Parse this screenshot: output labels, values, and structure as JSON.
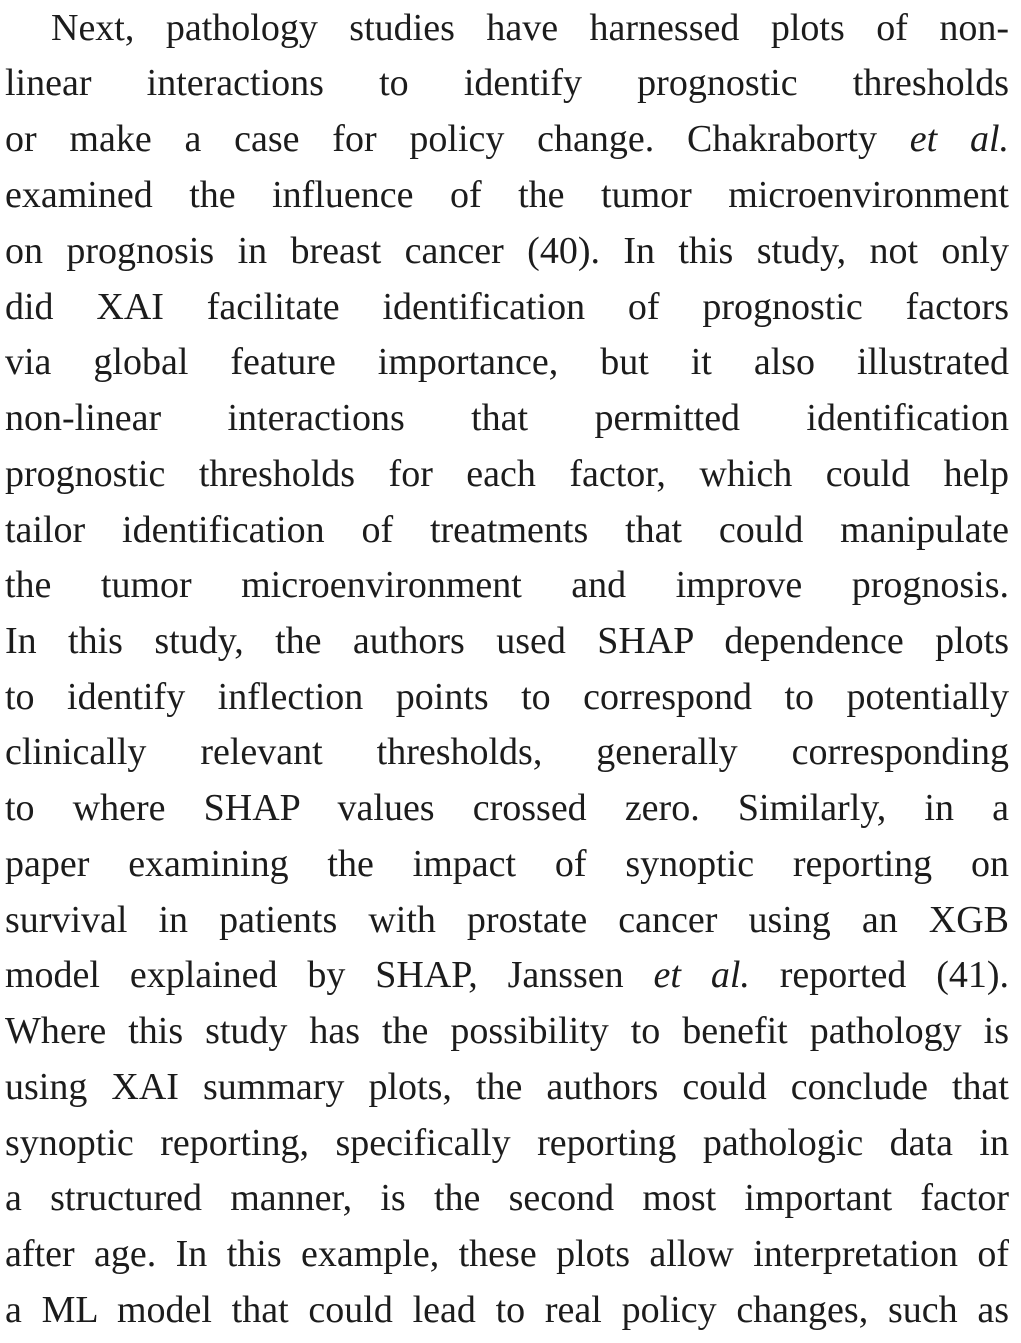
{
  "paragraph": {
    "lines": [
      [
        "Next, pathology studies have harnessed plots of non-"
      ],
      [
        "linear interactions to identify prognostic thresholds"
      ],
      [
        "or make a case for policy change. Chakraborty ",
        {
          "i": "et al."
        }
      ],
      [
        "examined the influence of the tumor microenvironment"
      ],
      [
        "on prognosis in breast cancer (40). In this study, not only"
      ],
      [
        "did XAI facilitate identification of prognostic factors"
      ],
      [
        "via global feature importance, but it also illustrated"
      ],
      [
        "non-linear interactions that permitted identification"
      ],
      [
        "prognostic thresholds for each factor, which could help"
      ],
      [
        "tailor identification of treatments that could manipulate"
      ],
      [
        "the tumor microenvironment and improve prognosis."
      ],
      [
        "In this study, the authors used SHAP dependence plots"
      ],
      [
        "to identify inflection points to correspond to potentially"
      ],
      [
        "clinically relevant thresholds, generally corresponding"
      ],
      [
        "to where SHAP values crossed zero. Similarly, in a"
      ],
      [
        "paper examining the impact of synoptic reporting on"
      ],
      [
        "survival in patients with prostate cancer using an XGB"
      ],
      [
        "model explained by SHAP, Janssen ",
        {
          "i": "et al."
        },
        " reported (41)."
      ],
      [
        "Where this study has the possibility to benefit pathology is"
      ],
      [
        "using XAI summary plots, the authors could conclude that"
      ],
      [
        "synoptic reporting, specifically reporting pathologic data in"
      ],
      [
        "a structured manner, is the second most important factor"
      ],
      [
        "after age. In this example, these plots allow interpretation of"
      ],
      [
        "a ML model that could lead to real policy changes, such as"
      ]
    ]
  }
}
